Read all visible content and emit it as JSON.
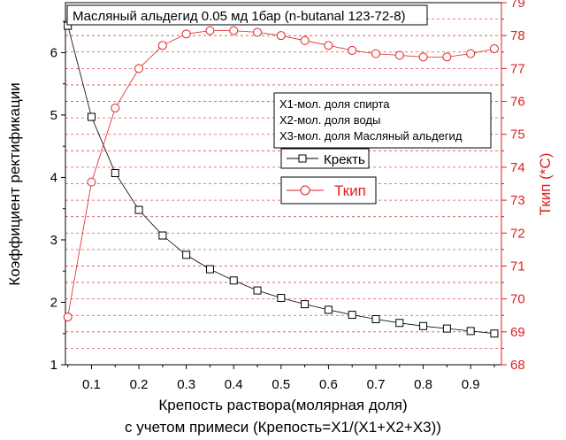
{
  "chart_data": {
    "type": "line",
    "title": "Масляный альдегид 0.05 мд 1бар (n-butanal 123-72-8)",
    "xlabel_line1": "Крепость раствора(молярная доля)",
    "xlabel_line2": "с учетом примеси (Крепость=X1/(X1+X2+X3))",
    "ylabel_left": "Коэффициент ректификации",
    "ylabel_right": "Ткип (*С)",
    "x_ticks": [
      "0.1",
      "0.2",
      "0.3",
      "0.4",
      "0.5",
      "0.6",
      "0.7",
      "0.8",
      "0.9"
    ],
    "xlim": [
      0.045,
      0.965
    ],
    "y_left_ticks": [
      "1",
      "2",
      "3",
      "4",
      "5",
      "6"
    ],
    "ylim_left": [
      1,
      6.8
    ],
    "y_right_ticks": [
      "68",
      "69",
      "70",
      "71",
      "72",
      "73",
      "74",
      "75",
      "76",
      "77",
      "78",
      "79"
    ],
    "ylim_right": [
      68,
      79
    ],
    "grid": "horizontal-dashed-red",
    "notes": [
      "X1-мол. доля спирта",
      "X2-мол. доля воды",
      "X3-мол. доля Масляный альдегид"
    ],
    "x": [
      0.05,
      0.1,
      0.15,
      0.2,
      0.25,
      0.3,
      0.35,
      0.4,
      0.45,
      0.5,
      0.55,
      0.6,
      0.65,
      0.7,
      0.75,
      0.8,
      0.85,
      0.9,
      0.95
    ],
    "series": [
      {
        "name": "Кректь",
        "axis": "left",
        "color": "#000000",
        "marker": "square",
        "values": [
          6.43,
          4.97,
          4.07,
          3.48,
          3.07,
          2.76,
          2.53,
          2.35,
          2.19,
          2.07,
          1.97,
          1.88,
          1.8,
          1.73,
          1.67,
          1.62,
          1.58,
          1.54,
          1.5
        ]
      },
      {
        "name": "Ткип",
        "axis": "right",
        "color": "#e02020",
        "marker": "circle",
        "values": [
          69.45,
          73.55,
          75.8,
          77.0,
          77.7,
          78.05,
          78.15,
          78.15,
          78.1,
          78.0,
          77.85,
          77.7,
          77.55,
          77.45,
          77.4,
          77.35,
          77.35,
          77.45,
          77.6
        ]
      }
    ]
  }
}
